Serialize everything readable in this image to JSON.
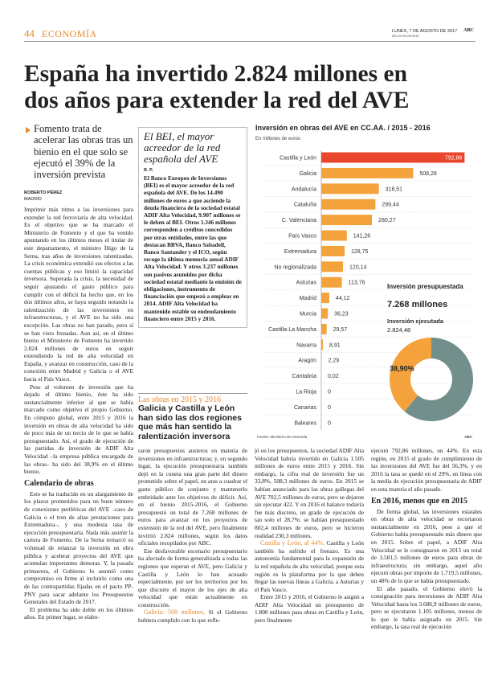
{
  "header": {
    "page_number": "44",
    "section": "ECONOMÍA",
    "date": "LUNES, 7 DE AGOSTO DE 2017",
    "brand": "ABC",
    "url": "abc.es/economia"
  },
  "headline": [
    "España ha invertido 2.824 millones en",
    "dos años para extender la red del AVE"
  ],
  "deck": "Fomento trata de acelerar las obras tras un bienio en el que solo se ejecutó el 39% de la inversión prevista",
  "byline": {
    "author": "ROBERTO PÉREZ",
    "place": "MADRID"
  },
  "sidebar": {
    "title": "El BEI, el mayor acreedor de la red española del AVE",
    "author": "R. P.",
    "text": "El Banco Europeo de Inversiones (BEI) es el mayor acreedor de la red española del AVE. De los 14.490 millones de euros a que asciende la deuda financiera de la sociedad estatal ADIF Alta Velocidad, 9.907 millones se le deben al BEI. Otros 1.346 millones corresponden a créditos concedidos por otras entidades, entre las que destacan BBVA, Banco Sabadell, Banco Santander y el ICO, según recoge la última memoria anual ADIF Alta Velocidad. Y otros 3.237 millones son pasivos asumidos por dicha sociedad estatal mediante la emisión de obligaciones, instrumento de financiación que empezó a emplear en 2014. ADIF Alta Velocidad ha mantenido estable su endeudamiento financiero entre 2015 y 2016."
  },
  "pullquote": {
    "kicker": "Las obras en 2015 y 2016",
    "text": "Galicia y Castilla y León han sido las dos regiones que más han sentido la ralentización inversora"
  },
  "body": {
    "columns": [
      [
        {
          "text": "Imprimir más ritmo a las inversiones para extender la red ferroviaria de alta velocidad. Es el objetivo que se ha marcado el Ministerio de Fomento y el que ha venido apuntando en los últimos meses el titular de este departamento, el ministro Íñigo de la Serna, tras años de inversiones ralentizadas. La crisis económica extendió sus efectos a las cuentas públicas y eso limitó la capacidad inversora. Superada la crisis, la necesidad de seguir ajustando el gasto público para cumplir con el déficit ha hecho que, en los dos últimos años, se haya seguido notando la ralentización de las inversiones en infraestructuras, y el AVE no ha sido una excepción. Las obras no han parado, pero sí se han visto frenadas. Aun así, en el último bienio el Ministerio de Fomento ha invertido 2.824 millones de euros en seguir extendiendo la red de alta velocidad en España, y avanzar en construcción, caso de la conexión entre Madrid y Galicia o el AVE hacia el País Vasco."
        },
        {
          "text": "Pese al volumen de inversión que ha dejado el último bienio, éste ha sido sustancialmente inferior al que se había marcado como objetivo el propio Gobierno. En cómputo global, entre 2015 y 2016 la inversión en obras de alta velocidad ha sido de poco más de un tercio de lo que se había presupuestado. Así, el grado de ejecución de las partidas de inversión de ADIF Alta Velocidad –la empresa pública encargada de las obras– ha sido del 38,9% en el último bienio."
        },
        {
          "subhead": "Calendario de obras"
        },
        {
          "text": "Esto se ha traducido en un alargamiento de los plazos prometidos para un buen número de conexiones periféricas del AVE –caso de Galicia o el tren de altas prestaciones para Extremadura–, y una modesta tasa de ejecución presupuestaria. Nada más asumir la cartera de Fomento, De la Serna remarcó su voluntad de relanzar la inversión en obra pública y acelerar proyectos del AVE que acumulan importantes demoras. Y, la pasada primavera, el Gobierno lo asumió como compromiso en firme al incluirlo como una de las contrapartidas fijadas en el pacto PP-PNV para sacar adelante los Presupuestos Generales del Estado de 2017."
        },
        {
          "text": "El problema ha sido doble en los últimos años. En primer lugar, se elabo-"
        }
      ],
      [
        {
          "text": "raron presupuestos austeros en materia de inversiones en infraestructuras; y, en segundo lugar, la ejecución presupuestaria también dejó en la cuneta una gran parte del dinero prometido sobre el papel, en aras a cuadrar el gasto público de conjunto y mantenerlo embridado ante los objetivos de déficit. Así, en el bienio 2015-2016, el Gobierno presupuestó un total de 7.268 millones de euros para avanzar en los proyectos de extensión de la red del AVE, pero finalmente invirtió 2.824 millones, según los datos oficiales recopilados por ABC."
        },
        {
          "text": "Ese desfavorable escenario presupuestario ha afectado de forma generalizada a todas las regiones que esperan el AVE, pero Galicia y Castilla y León lo han acusado especialmente, por ser los territorios por los que discurre el mayor de los ejes de alta velocidad que están actualmente en construcción."
        },
        {
          "lead": "Galicia: 508 millones.",
          "text": "Si el Gobierno hubiera cumplido con lo que refle-"
        }
      ],
      [
        {
          "text": "jó en los presupuestos, la sociedad ADIF Alta Velocidad habría invertido en Galicia 1.505 millones de euros entre 2015 y 2016. Sin embargo, la cifra real de inversión fue un 33,8%, 508,3 millones de euros. En 2015 se habían anunciado para las obras gallegas del AVE 702,5 millones de euros, pero se dejaron sin ejecutar 422. Y en 2016 el balance todavía fue más discreto, un grado de ejecución de tan solo el 28,7%: se habían presupuestado 802,4 millones de euros, pero se hicieron realidad 230,3 millones."
        },
        {
          "lead": "Castilla y León, al 44%.",
          "text": "Castilla y León también ha sufrido el frenazo. Es una autonomía fundamental para la expansión de la red española de alta velocidad, porque esta región es la plataforma por la que deben llegar las nuevas líneas a Galicia, a Asturias y el País Vasco."
        },
        {
          "text": "Entre 2015 y 2016, el Gobierno le asignó a ADIF Alta Velocidad un presupuesto de 1.800 millones para obras en Castilla y León, pero finalmente"
        }
      ],
      [
        {
          "text": "ejecutó 792,86 millones, un 44%. En esta región, en 2015 el grado de cumplimiento de las inversiones del AVE fue del 56,3%, y en 2016 la tasa se quedó en el 29%, en línea con la media de ejecución presupuestaria de ADIF en esta materia el año pasado."
        },
        {
          "subhead": "En 2016, menos que en 2015"
        },
        {
          "text": "De forma global, las inversiones estatales en obras de alta velocidad se recortaron sustancialmente en 2016, pese a que el Gobierno había presupuestado más dinero que en 2015. Sobre el papel, a ADIF Alta Velocidad se le consignaron en 2015 un total de 3.581,5 millones de euros para obras de infraestructura; sin embargo, aquel año ejecutó obras por importe de 1.719,5 millones, un 48% de lo que se había presupuestado."
        },
        {
          "text": "El año pasado, el Gobierno elevó la consignación para inversiones de ADIF Alta Velocidad hasta los 3.686,9 millones de euros, pero se ejecutaron 1.105 millones, menos de lo que le había asignado en 2015. Sin embargo, la tasa real de ejecución"
        }
      ]
    ]
  },
  "chart_data": [
    {
      "type": "hbar",
      "title": "Inversión en obras del AVE en CC.AA. / 2015 - 2016",
      "subtitle": "En millones de euros",
      "categories": [
        "Castilla y León",
        "Galicia",
        "Andalucía",
        "Cataluña",
        "C. Valenciana",
        "País Vasco",
        "Extremadura",
        "No regionalizada",
        "Asturias",
        "Madrid",
        "Murcia",
        "Castilla-La Mancha",
        "Navarra",
        "Aragón",
        "Cantabria",
        "La Rioja",
        "Canarias",
        "Baleares"
      ],
      "values": [
        792.86,
        508.28,
        318.51,
        299.44,
        280.27,
        141.26,
        128.75,
        120.14,
        113.76,
        44.12,
        36.23,
        29.57,
        8.91,
        2.29,
        0.02,
        0,
        0,
        0
      ],
      "value_labels": [
        "792,86",
        "508,28",
        "318,51",
        "299,44",
        "280,27",
        "141,26",
        "128,75",
        "120,14",
        "113,76",
        "44,12",
        "36,23",
        "29,57",
        "8,91",
        "2,29",
        "0,02",
        "0",
        "0",
        "0"
      ],
      "colors": [
        "#e8472e",
        "#f4a23c",
        "#f4a23c",
        "#f4a23c",
        "#f4a23c",
        "#f4a23c",
        "#f4a23c",
        "#f4a23c",
        "#f4a23c",
        "#f4a23c",
        "#f4a23c",
        "#f4a23c",
        "#f4a23c",
        "#f4a23c",
        "#f4a23c",
        "#f4a23c",
        "#f4a23c",
        "#f4a23c"
      ],
      "xlim": [
        0,
        800
      ],
      "source": "Fuente: Ministerio de Hacienda",
      "credit": "ABC"
    },
    {
      "type": "donut",
      "budget_label": "Inversión presupuestada",
      "budget_value": "7.268 millones",
      "executed_label": "Inversión ejecutada",
      "executed_value": "2.824,48",
      "values": [
        38.9,
        61.1
      ],
      "value_labels": [
        "38,90%",
        null
      ],
      "colors": [
        "#f4a23c",
        "#728f8c"
      ]
    }
  ]
}
